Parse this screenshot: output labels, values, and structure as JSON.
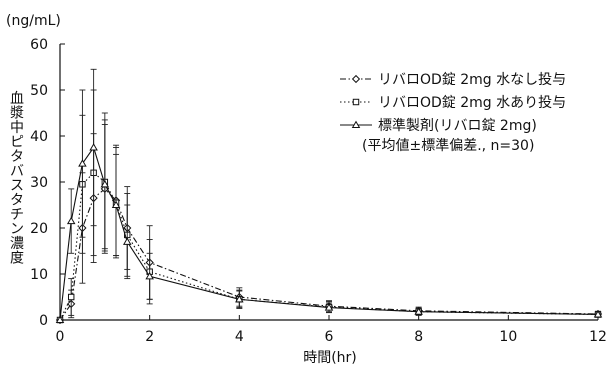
{
  "chart_data": {
    "type": "line",
    "title": "",
    "y_unit_label": "(ng/mL)",
    "ylabel": "血漿中ピタバスタチン濃度",
    "xlabel": "時間(hr)",
    "xlim": [
      0,
      12
    ],
    "ylim": [
      0,
      60
    ],
    "x_ticks": [
      0,
      2,
      4,
      6,
      8,
      10,
      12
    ],
    "y_ticks": [
      0,
      10,
      20,
      30,
      40,
      50,
      60
    ],
    "grid": false,
    "legend_position": "top-right",
    "note": "(平均値±標準偏差., n=30)",
    "x": [
      0,
      0.25,
      0.5,
      0.75,
      1,
      1.25,
      1.5,
      2,
      4,
      6,
      8,
      12
    ],
    "series": [
      {
        "name": "リバロOD錠 2mg 水なし投与",
        "marker": "diamond",
        "dash": "dashdot",
        "color": "#111111",
        "values": [
          0,
          3.5,
          20,
          26.5,
          28.5,
          26,
          20,
          12.5,
          5,
          3,
          2,
          1.3
        ],
        "sd": [
          0,
          3,
          12,
          14,
          14,
          12,
          9,
          8,
          2,
          1.2,
          0.8,
          0.6
        ]
      },
      {
        "name": "リバロOD錠 2mg 水あり投与",
        "marker": "square",
        "dash": "dotted",
        "color": "#111111",
        "values": [
          0,
          5,
          29.5,
          32,
          30,
          25.5,
          18.5,
          10.5,
          4.5,
          2.8,
          1.8,
          1.2
        ],
        "sd": [
          0,
          4,
          15,
          18,
          15,
          12,
          9,
          7,
          2,
          1.2,
          0.8,
          0.6
        ]
      },
      {
        "name": "標準製剤(リバロ錠 2mg)",
        "marker": "triangle",
        "dash": "solid",
        "color": "#111111",
        "values": [
          0,
          21.5,
          34,
          37.5,
          29.5,
          25,
          17,
          9.5,
          4.5,
          2.7,
          1.8,
          1.2
        ],
        "sd": [
          0,
          7,
          16,
          17,
          14,
          11,
          8,
          5,
          1.8,
          1,
          0.7,
          0.5
        ]
      }
    ]
  }
}
